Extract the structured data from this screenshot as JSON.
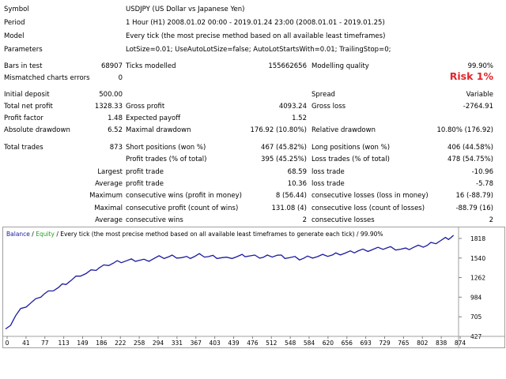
{
  "report": {
    "symbol_label": "Symbol",
    "symbol_value": "USDJPY (US Dollar vs Japanese Yen)",
    "period_label": "Period",
    "period_value": "1 Hour (H1) 2008.01.02 00:00 - 2019.01.24 23:00 (2008.01.01 - 2019.01.25)",
    "model_label": "Model",
    "model_value": "Every tick (the most precise method based on all available least timeframes)",
    "parameters_label": "Parameters",
    "parameters_value": "LotSize=0.01; UseAutoLotSize=false; AutoLotStartsWith=0.01; TrailingStop=0;",
    "bars_label": "Bars in test",
    "bars_value": "68907",
    "ticks_label": "Ticks modelled",
    "ticks_value": "155662656",
    "quality_label": "Modelling quality",
    "quality_value": "99.90%",
    "mismatched_label": "Mismatched charts errors",
    "mismatched_value": "0",
    "risk_label": "Risk 1%",
    "deposit_label": "Initial deposit",
    "deposit_value": "500.00",
    "spread_label": "Spread",
    "spread_value": "Variable",
    "net_profit_label": "Total net profit",
    "net_profit_value": "1328.33",
    "gross_profit_label": "Gross profit",
    "gross_profit_value": "4093.24",
    "gross_loss_label": "Gross loss",
    "gross_loss_value": "-2764.91",
    "profit_factor_label": "Profit factor",
    "profit_factor_value": "1.48",
    "expected_payoff_label": "Expected payoff",
    "expected_payoff_value": "1.52",
    "abs_dd_label": "Absolute drawdown",
    "abs_dd_value": "6.52",
    "max_dd_label": "Maximal drawdown",
    "max_dd_value": "176.92 (10.80%)",
    "rel_dd_label": "Relative drawdown",
    "rel_dd_value": "10.80% (176.92)",
    "total_trades_label": "Total trades",
    "total_trades_value": "873",
    "short_label": "Short positions (won %)",
    "short_value": "467 (45.82%)",
    "long_label": "Long positions (won %)",
    "long_value": "406 (44.58%)",
    "profit_trades_label": "Profit trades (% of total)",
    "profit_trades_value": "395 (45.25%)",
    "loss_trades_label": "Loss trades (% of total)",
    "loss_trades_value": "478 (54.75%)",
    "largest_label": "Largest",
    "largest_profit_label": "profit trade",
    "largest_profit_value": "68.59",
    "largest_loss_label": "loss trade",
    "largest_loss_value": "-10.96",
    "average_label": "Average",
    "average_profit_label": "profit trade",
    "average_profit_value": "10.36",
    "average_loss_label": "loss trade",
    "average_loss_value": "-5.78",
    "maximum_label": "Maximum",
    "max_cons_wins_label": "consecutive wins (profit in money)",
    "max_cons_wins_value": "8 (56.44)",
    "max_cons_losses_label": "consecutive losses (loss in money)",
    "max_cons_losses_value": "16 (-88.79)",
    "maximal_label": "Maximal",
    "maximal_cons_profit_label": "consecutive profit (count of wins)",
    "maximal_cons_profit_value": "131.08 (4)",
    "maximal_cons_loss_label": "consecutive loss (count of losses)",
    "maximal_cons_loss_value": "-88.79 (16)",
    "average2_label": "Average",
    "avg_cons_wins_label": "consecutive wins",
    "avg_cons_wins_value": "2",
    "avg_cons_losses_label": "consecutive losses",
    "avg_cons_losses_value": "2"
  },
  "chart_header": {
    "balance": "Balance",
    "sep1": " / ",
    "equity": "Equity",
    "sep2": " / ",
    "description": "Every tick (the most precise method based on all available least timeframes to generate each tick)",
    "sep3": " / ",
    "quality": "99.90%"
  },
  "chart_data": {
    "type": "line",
    "x_ticks": [
      "0",
      "41",
      "77",
      "113",
      "149",
      "186",
      "222",
      "258",
      "294",
      "331",
      "367",
      "403",
      "439",
      "476",
      "512",
      "548",
      "584",
      "620",
      "656",
      "693",
      "729",
      "765",
      "802",
      "838",
      "874"
    ],
    "y_ticks": [
      "1818",
      "1540",
      "1262",
      "984",
      "705",
      "427"
    ],
    "ylim": [
      427,
      1818
    ],
    "xlim": [
      0,
      900
    ],
    "series": [
      {
        "name": "Balance",
        "color": "#1a1aa0",
        "x": [
          0,
          10,
          20,
          30,
          41,
          50,
          60,
          70,
          77,
          85,
          95,
          105,
          113,
          120,
          130,
          140,
          149,
          160,
          170,
          180,
          186,
          195,
          205,
          215,
          222,
          230,
          240,
          250,
          258,
          265,
          275,
          285,
          294,
          305,
          315,
          325,
          331,
          340,
          350,
          360,
          367,
          375,
          385,
          395,
          403,
          412,
          420,
          430,
          439,
          450,
          460,
          470,
          476,
          485,
          495,
          505,
          512,
          520,
          530,
          540,
          548,
          555,
          565,
          575,
          584,
          592,
          600,
          610,
          620,
          630,
          640,
          650,
          656,
          665,
          675,
          685,
          693,
          700,
          710,
          720,
          729,
          740,
          750,
          760,
          765,
          775,
          785,
          795,
          802,
          810,
          820,
          830,
          838,
          845,
          855,
          865,
          874,
          880,
          885,
          890
        ],
        "y": [
          510,
          600,
          720,
          800,
          860,
          900,
          940,
          1000,
          1030,
          1050,
          1090,
          1120,
          1150,
          1180,
          1220,
          1260,
          1300,
          1320,
          1350,
          1380,
          1400,
          1420,
          1450,
          1470,
          1480,
          1490,
          1500,
          1505,
          1510,
          1505,
          1500,
          1510,
          1530,
          1550,
          1550,
          1560,
          1560,
          1555,
          1545,
          1540,
          1550,
          1560,
          1580,
          1570,
          1560,
          1555,
          1550,
          1545,
          1530,
          1550,
          1560,
          1570,
          1575,
          1570,
          1560,
          1555,
          1550,
          1560,
          1570,
          1580,
          1560,
          1550,
          1545,
          1540,
          1530,
          1535,
          1545,
          1555,
          1560,
          1570,
          1580,
          1585,
          1590,
          1600,
          1610,
          1620,
          1630,
          1640,
          1645,
          1650,
          1660,
          1670,
          1680,
          1690,
          1680,
          1670,
          1665,
          1660,
          1675,
          1690,
          1700,
          1710,
          1720,
          1740,
          1760,
          1790,
          1810,
          1820,
          1830,
          1840
        ]
      }
    ]
  }
}
